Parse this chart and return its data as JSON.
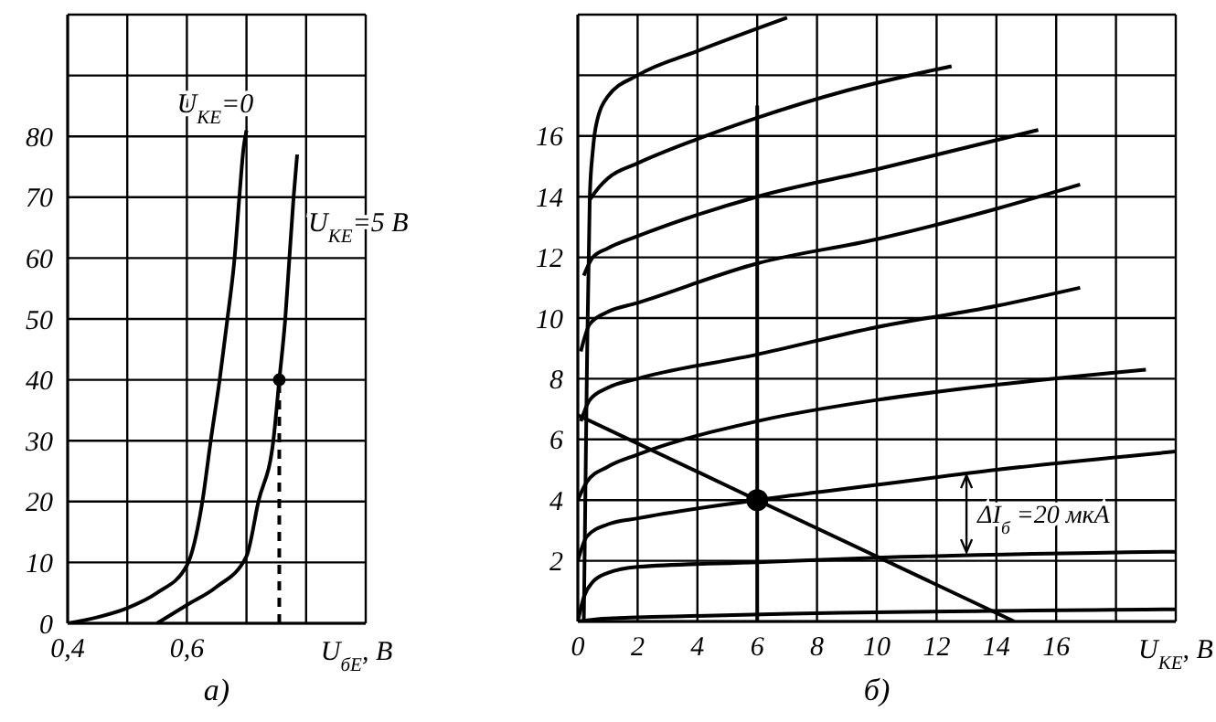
{
  "chart_data": [
    {
      "type": "line",
      "xlabel": "U$_{бЕ}$, В",
      "xlim": [
        0.4,
        0.9
      ],
      "xticks": [
        {
          "value": 0.4,
          "label": "0,4"
        },
        {
          "value": 0.5,
          "label": null
        },
        {
          "value": 0.6,
          "label": "0,6"
        },
        {
          "value": 0.7,
          "label": null
        },
        {
          "value": 0.8,
          "label": null
        },
        {
          "value": 0.9,
          "label": null
        }
      ],
      "ylim": [
        0,
        100
      ],
      "yticks": [
        0,
        10,
        20,
        30,
        40,
        50,
        60,
        70,
        80,
        {
          "value": 90,
          "label": null
        },
        {
          "value": 100,
          "label": null
        }
      ],
      "grid": true,
      "marker": "none",
      "annotations": [
        "а)"
      ],
      "series": [
        {
          "name": "U$_{КЕ}$=0",
          "color": "#000000",
          "x": [
            0.4,
            0.45,
            0.5,
            0.55,
            0.6,
            0.626,
            0.64,
            0.655,
            0.668,
            0.68,
            0.688,
            0.695,
            0.7
          ],
          "values": [
            0,
            1,
            2.5,
            5,
            9.5,
            20,
            30,
            40,
            50,
            60,
            70,
            78,
            81
          ]
        },
        {
          "name": "U$_{КЕ}$=5 В",
          "color": "#000000",
          "x": [
            0.55,
            0.6,
            0.65,
            0.7,
            0.72,
            0.745,
            0.755,
            0.765,
            0.772,
            0.779,
            0.785
          ],
          "values": [
            0,
            3,
            6,
            11,
            20,
            30,
            40,
            50,
            60,
            70,
            77
          ]
        },
        {
          "type": "line",
          "line_style": "dashed",
          "color": "#000000",
          "x": [
            0.755,
            0.755
          ],
          "values": [
            0,
            40
          ]
        },
        {
          "type": "scatter",
          "marker": "circle",
          "color": "#000000",
          "x": [
            0.755
          ],
          "values": [
            40
          ]
        }
      ]
    },
    {
      "type": "line",
      "xlabel": "U$_{КЕ}$, В",
      "xlim": [
        0,
        20
      ],
      "xticks": [
        0,
        2,
        4,
        6,
        8,
        10,
        12,
        14,
        16,
        {
          "value": 18,
          "label": null
        },
        {
          "value": 20,
          "label": null
        }
      ],
      "ylim": [
        0,
        20
      ],
      "yticks": [
        {
          "value": 0,
          "label": null
        },
        2,
        4,
        6,
        8,
        10,
        12,
        14,
        16,
        {
          "value": 18,
          "label": null
        },
        {
          "value": 20,
          "label": null
        }
      ],
      "grid": true,
      "marker": "none",
      "annotations": [
        "ΔI$_{б}$ =20 мкА",
        "б)"
      ],
      "series": [
        {
          "color": "#000000",
          "x": [
            0,
            1,
            20
          ],
          "values": [
            0,
            0.1,
            0.4
          ]
        },
        {
          "color": "#000000",
          "x": [
            0,
            0.2,
            0.5,
            1,
            2,
            6,
            10,
            20
          ],
          "values": [
            0,
            0.8,
            1.3,
            1.6,
            1.8,
            1.95,
            2.1,
            2.3
          ]
        },
        {
          "color": "#000000",
          "x": [
            0,
            0.3,
            1,
            2,
            6,
            10,
            14,
            20
          ],
          "values": [
            2,
            2.8,
            3.2,
            3.4,
            4,
            4.5,
            5,
            5.6
          ]
        },
        {
          "color": "#000000",
          "x": [
            0,
            0.3,
            1,
            2,
            6,
            10,
            14,
            19
          ],
          "values": [
            4,
            4.6,
            5.1,
            5.5,
            6.6,
            7.3,
            7.8,
            8.3
          ]
        },
        {
          "color": "#000000",
          "x": [
            0.1,
            0.4,
            1,
            2,
            6,
            10,
            14,
            16.8
          ],
          "values": [
            6.6,
            7.3,
            7.7,
            8,
            8.8,
            9.7,
            10.4,
            11
          ]
        },
        {
          "color": "#000000",
          "x": [
            0.1,
            0.4,
            1,
            2,
            6,
            10,
            14,
            16.8
          ],
          "values": [
            8.9,
            9.8,
            10.2,
            10.5,
            11.8,
            12.6,
            13.6,
            14.4
          ]
        },
        {
          "color": "#000000",
          "x": [
            0.2,
            0.5,
            1,
            2,
            6,
            10,
            15.4
          ],
          "values": [
            11.4,
            12,
            12.3,
            12.7,
            14,
            14.9,
            16.2
          ]
        },
        {
          "color": "#000000",
          "x": [
            0.4,
            0.7,
            1,
            2,
            4,
            6,
            9,
            12.5
          ],
          "values": [
            13.9,
            14.3,
            14.6,
            15.1,
            15.9,
            16.6,
            17.5,
            18.3
          ]
        },
        {
          "color": "#000000",
          "x": [
            0.2,
            0.3,
            0.4,
            0.5,
            0.6,
            1,
            2,
            4,
            7
          ],
          "values": [
            0,
            8,
            14,
            15.5,
            16.3,
            17.3,
            18,
            18.8,
            19.9
          ]
        },
        {
          "color": "#000000",
          "x": [
            0,
            6,
            14.6
          ],
          "values": [
            6.8,
            4,
            0
          ]
        },
        {
          "color": "#000000",
          "x": [
            6,
            6
          ],
          "values": [
            0,
            17
          ]
        },
        {
          "type": "scatter",
          "marker": "circle",
          "color": "#000000",
          "x": [
            6
          ],
          "values": [
            4
          ]
        }
      ]
    }
  ]
}
